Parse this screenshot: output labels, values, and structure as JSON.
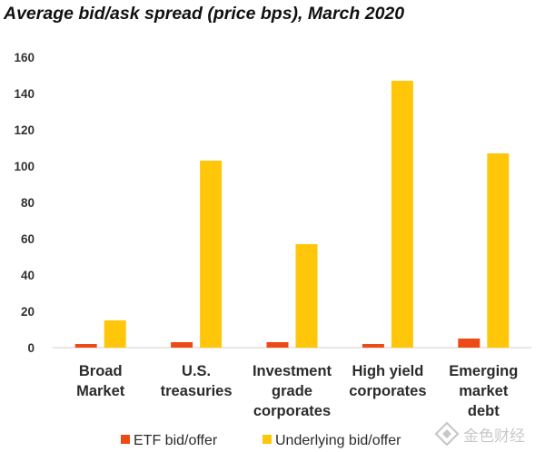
{
  "chart_data": {
    "type": "bar",
    "title": "Average bid/ask spread (price bps), March 2020",
    "categories": [
      [
        "Broad",
        "Market"
      ],
      [
        "U.S.",
        "treasuries"
      ],
      [
        "Investment",
        "grade",
        "corporates"
      ],
      [
        "High yield",
        "corporates"
      ],
      [
        "Emerging",
        "market",
        "debt"
      ]
    ],
    "series": [
      {
        "name": "ETF bid/offer",
        "color": "#ee4a16",
        "values": [
          2,
          3,
          3,
          2,
          5
        ]
      },
      {
        "name": "Underlying bid/offer",
        "color": "#ffc60a",
        "values": [
          15,
          103,
          57,
          147,
          107
        ]
      }
    ],
    "ylim": [
      0,
      160
    ],
    "yticks": [
      0,
      20,
      40,
      60,
      80,
      100,
      120,
      140,
      160
    ],
    "grid": false,
    "legend": "bottom",
    "watermark": "金色财经",
    "watermark_icon": "logo-icon"
  }
}
